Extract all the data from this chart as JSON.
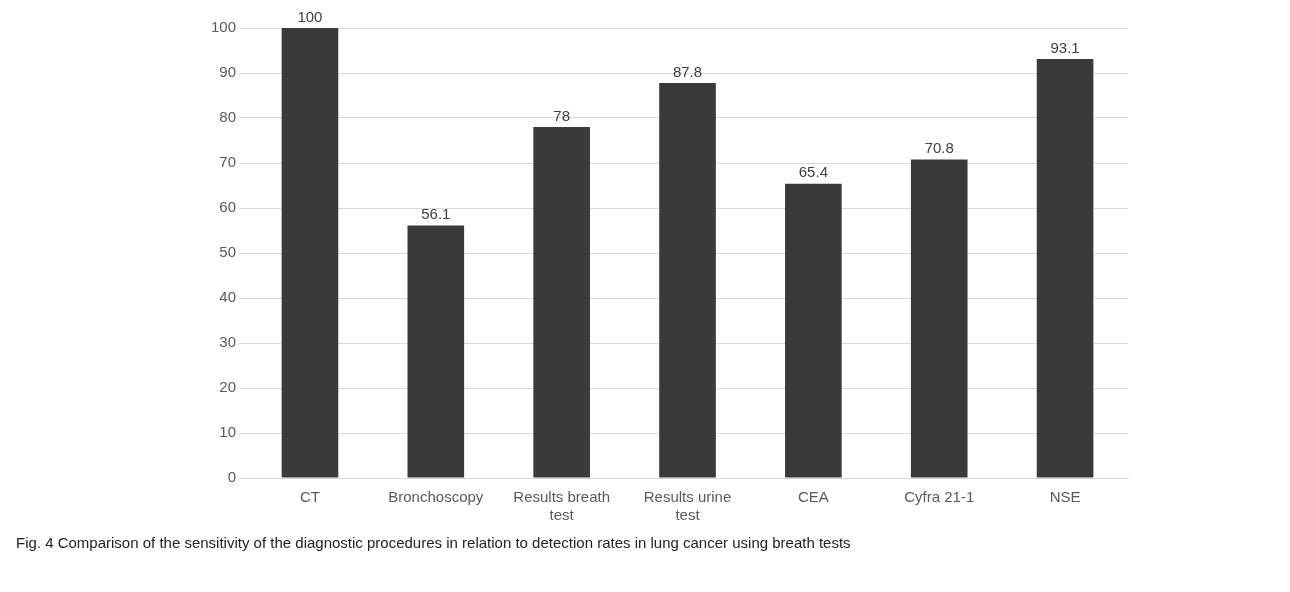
{
  "chart_data": {
    "type": "bar",
    "categories": [
      "CT",
      "Bronchoscopy",
      "Results breath test",
      "Results urine test",
      "CEA",
      "Cyfra 21-1",
      "NSE"
    ],
    "values": [
      100,
      56.1,
      78,
      87.8,
      65.4,
      70.8,
      93.1
    ],
    "color": "#3a3a3a",
    "ylim": [
      0,
      100
    ],
    "yticks": [
      0,
      10,
      20,
      30,
      40,
      50,
      60,
      70,
      80,
      90,
      100
    ],
    "grid": "y",
    "data_labels": true,
    "annotations": [
      "Fig. 4 Comparison of the sensitivity of the diagnostic procedures in relation to detection rates in lung cancer using breath tests"
    ]
  }
}
